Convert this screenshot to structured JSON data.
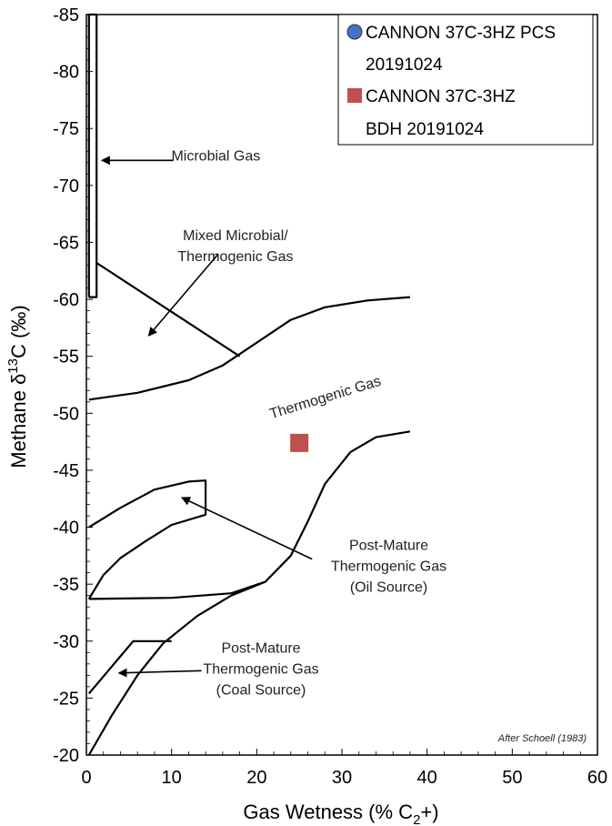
{
  "chart_data": {
    "type": "scatter",
    "xlabel": "Gas Wetness (% C",
    "xlabel_sub": "2",
    "xlabel_tail": "+)",
    "ylabel": "Methane  δ",
    "ylabel_sup": "13",
    "ylabel_tail": "C (‰)",
    "xlim": [
      0,
      60
    ],
    "ylim": [
      -20,
      -85
    ],
    "x_ticks": [
      "0",
      "10",
      "20",
      "30",
      "40",
      "50",
      "60"
    ],
    "y_ticks": [
      "-20",
      "-25",
      "-30",
      "-35",
      "-40",
      "-45",
      "-50",
      "-55",
      "-60",
      "-65",
      "-70",
      "-75",
      "-80",
      "-85"
    ],
    "grid": false,
    "legend_position": "top-right",
    "series": [
      {
        "name": "CANNON 37C-3HZ PCS 20191024",
        "name_line1": "CANNON 37C-3HZ PCS",
        "name_line2": "20191024",
        "marker": "circle",
        "color": "#4472C4",
        "points": []
      },
      {
        "name": "CANNON 37C-3HZ BDH 20191024",
        "name_line1": "CANNON 37C-3HZ",
        "name_line2": "BDH 20191024",
        "marker": "square",
        "color": "#C0504D",
        "points": [
          [
            25.0,
            -47.4
          ]
        ]
      }
    ],
    "field_boundaries": [
      [
        [
          0.3,
          -60.2
        ],
        [
          0.3,
          -85
        ],
        [
          1.2,
          -85
        ],
        [
          1.2,
          -60.2
        ],
        [
          0.3,
          -60.2
        ]
      ],
      [
        [
          1.2,
          -63.2
        ],
        [
          18,
          -55
        ]
      ],
      [
        [
          0.3,
          -51.2
        ],
        [
          6,
          -51.8
        ],
        [
          12,
          -52.9
        ],
        [
          16,
          -54.2
        ],
        [
          20,
          -56.2
        ],
        [
          24,
          -58.2
        ],
        [
          28,
          -59.3
        ],
        [
          33,
          -59.9
        ],
        [
          38,
          -60.2
        ]
      ],
      [
        [
          0.3,
          -33.7
        ],
        [
          10,
          -33.8
        ],
        [
          17,
          -34.2
        ],
        [
          21,
          -35.2
        ],
        [
          24,
          -37.5
        ],
        [
          26,
          -40.5
        ],
        [
          28,
          -43.8
        ],
        [
          31,
          -46.6
        ],
        [
          34,
          -47.9
        ],
        [
          38,
          -48.4
        ]
      ],
      [
        [
          0.3,
          -33.7
        ],
        [
          2,
          -35.8
        ],
        [
          4,
          -37.3
        ],
        [
          7,
          -38.8
        ],
        [
          10,
          -40.2
        ],
        [
          14,
          -41.1
        ],
        [
          14,
          -44.1
        ],
        [
          12,
          -44.0
        ],
        [
          8,
          -43.3
        ],
        [
          4,
          -41.7
        ],
        [
          0.3,
          -40.0
        ]
      ],
      [
        [
          0.3,
          -20
        ],
        [
          3,
          -23.5
        ],
        [
          6,
          -27
        ],
        [
          9,
          -29.8
        ],
        [
          13,
          -32.2
        ],
        [
          17,
          -34
        ],
        [
          21,
          -35.2
        ]
      ],
      [
        [
          0.3,
          -25.4
        ],
        [
          5.5,
          -30.0
        ],
        [
          10,
          -30.0
        ]
      ]
    ],
    "annotations": [
      {
        "lines": [
          "Microbial Gas"
        ],
        "x": 15.2,
        "y": -72.2,
        "anchor": "middle",
        "rotate": 0,
        "arrow_from": [
          10.2,
          -72.2
        ],
        "arrow_to": [
          1.8,
          -72.2
        ]
      },
      {
        "lines": [
          "Mixed Microbial/",
          "Thermogenic Gas"
        ],
        "x": 17.5,
        "y": -65.2,
        "anchor": "middle",
        "rotate": 0,
        "arrow_from": [
          15.5,
          -64.0
        ],
        "arrow_to": [
          7.3,
          -56.8
        ]
      },
      {
        "lines": [
          "Thermogenic Gas"
        ],
        "x": 28.2,
        "y": -51.0,
        "anchor": "middle",
        "rotate": -17,
        "arrow_from": null,
        "arrow_to": null
      },
      {
        "lines": [
          "Post-Mature",
          "Thermogenic Gas",
          "(Oil Source)"
        ],
        "x": 35.5,
        "y": -38.0,
        "anchor": "middle",
        "rotate": 0,
        "arrow_from": [
          26.5,
          -37.2
        ],
        "arrow_to": [
          11.2,
          -42.6
        ]
      },
      {
        "lines": [
          "Post-Mature",
          "Thermogenic Gas",
          "(Coal Source)"
        ],
        "x": 20.5,
        "y": -29.0,
        "anchor": "middle",
        "rotate": 0,
        "arrow_from": [
          13.5,
          -27.4
        ],
        "arrow_to": [
          3.8,
          -27.2
        ]
      }
    ],
    "credit": "After Schoell (1983)"
  }
}
